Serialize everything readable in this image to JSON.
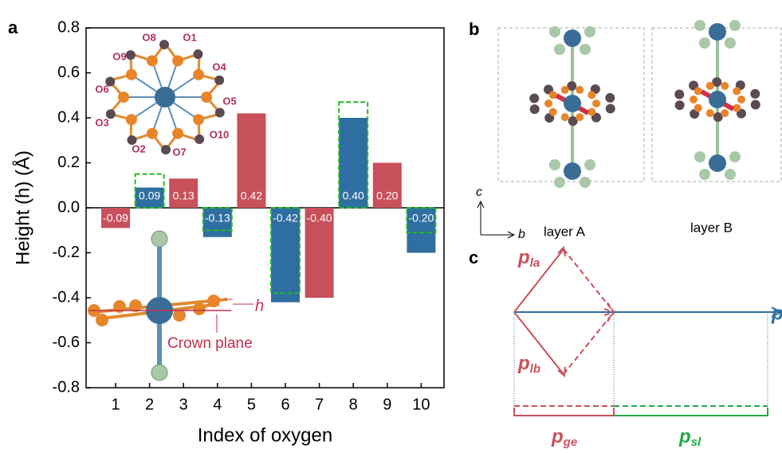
{
  "chart_data": {
    "type": "bar",
    "xlabel": "Index of oxygen",
    "ylabel": "Height (h) (Å)",
    "categories": [
      "1",
      "2",
      "3",
      "4",
      "5",
      "6",
      "7",
      "8",
      "9",
      "10"
    ],
    "values": [
      -0.09,
      0.09,
      0.13,
      -0.13,
      0.42,
      -0.42,
      -0.4,
      0.4,
      0.2,
      -0.2
    ],
    "value_labels": [
      "-0.09",
      "0.09",
      "0.13",
      "-0.13",
      "0.42",
      "-0.42",
      "-0.40",
      "0.40",
      "0.20",
      "-0.20"
    ],
    "colors": [
      "#c8505a",
      "#2f6ea0",
      "#c8505a",
      "#2f6ea0",
      "#c8505a",
      "#2f6ea0",
      "#c8505a",
      "#2f6ea0",
      "#c8505a",
      "#2f6ea0"
    ],
    "reference_values": [
      null,
      0.15,
      null,
      -0.1,
      null,
      -0.38,
      null,
      0.47,
      null,
      -0.11
    ],
    "reference_color": "#22bb22",
    "ylim": [
      -0.8,
      0.8
    ],
    "yticks": [
      -0.8,
      -0.6,
      -0.4,
      -0.2,
      {
        "value": 0,
        "label": "0.0"
      },
      0.2,
      0.4,
      0.6,
      0.8
    ]
  },
  "panel_labels": {
    "a": "a",
    "b": "b",
    "c": "c"
  },
  "inset": {
    "oxygen_labels": [
      "O1",
      "O2",
      "O3",
      "O4",
      "O5",
      "O6",
      "O7",
      "O8",
      "O9",
      "O10"
    ],
    "h": "h",
    "crown_plane": "Crown plane"
  },
  "panel_b": {
    "axis_c": "c",
    "axis_b": "b",
    "layer_a": "layer A",
    "layer_b": "layer B"
  },
  "panel_c": {
    "p_la": {
      "symbol": "p",
      "subscript": "la"
    },
    "p_lb": {
      "symbol": "p",
      "subscript": "lb"
    },
    "p_ge": {
      "symbol": "p",
      "subscript": "ge"
    },
    "p_sl": {
      "symbol": "p",
      "subscript": "sl"
    },
    "p": "p"
  }
}
